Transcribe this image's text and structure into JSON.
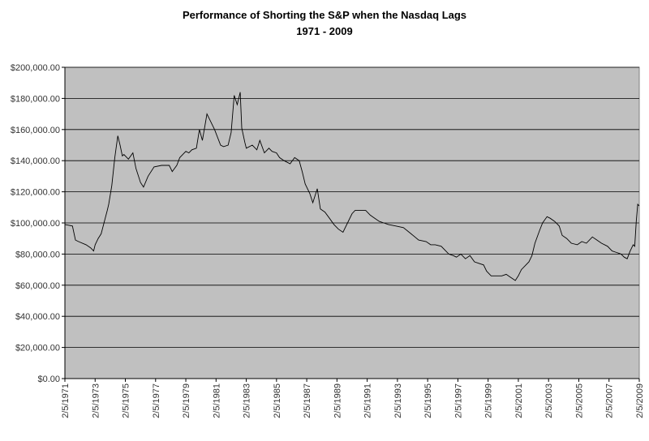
{
  "chart_data": {
    "type": "line",
    "title": "Performance of Shorting the S&P when the Nasdaq Lags",
    "subtitle": "1971 - 2009",
    "xlabel": "",
    "ylabel": "",
    "ylim": [
      0,
      200000
    ],
    "xlim": [
      1971.1,
      2009.1
    ],
    "grid": true,
    "legend": "none",
    "plot_background": "#c0c0c0",
    "line_color": "#000000",
    "y_ticks": [
      "$0.00",
      "$20,000.00",
      "$40,000.00",
      "$60,000.00",
      "$80,000.00",
      "$100,000.00",
      "$120,000.00",
      "$140,000.00",
      "$160,000.00",
      "$180,000.00",
      "$200,000.00"
    ],
    "x_ticks": [
      "2/5/1971",
      "2/5/1973",
      "2/5/1975",
      "2/5/1977",
      "2/5/1979",
      "2/5/1981",
      "2/5/1983",
      "2/5/1985",
      "2/5/1987",
      "2/5/1989",
      "2/5/1991",
      "2/5/1993",
      "2/5/1995",
      "2/5/1997",
      "2/5/1999",
      "2/5/2001",
      "2/5/2003",
      "2/5/2005",
      "2/5/2007",
      "2/5/2009"
    ],
    "series": [
      {
        "x": [
          1971.1,
          1971.6,
          1971.8,
          1972.0,
          1972.5,
          1972.8,
          1973.0,
          1973.1,
          1973.3,
          1973.5,
          1973.9,
          1974.0,
          1974.2,
          1974.4,
          1974.6,
          1974.75,
          1974.9,
          1975.0,
          1975.3,
          1975.6,
          1975.8,
          1976.1,
          1976.3,
          1976.6,
          1977.0,
          1977.5,
          1978.0,
          1978.2,
          1978.5,
          1978.7,
          1979.0,
          1979.1,
          1979.3,
          1979.5,
          1979.8,
          1980.0,
          1980.2,
          1980.5,
          1980.7,
          1981.0,
          1981.4,
          1981.6,
          1981.9,
          1982.1,
          1982.3,
          1982.5,
          1982.7,
          1982.8,
          1983.0,
          1983.1,
          1983.5,
          1983.8,
          1984.0,
          1984.3,
          1984.6,
          1984.8,
          1985.1,
          1985.3,
          1985.6,
          1986.0,
          1986.3,
          1986.6,
          1986.8,
          1987.0,
          1987.3,
          1987.5,
          1987.8,
          1988.0,
          1988.3,
          1988.6,
          1988.9,
          1989.2,
          1989.5,
          1989.8,
          1990.1,
          1990.3,
          1990.6,
          1991.0,
          1991.3,
          1991.6,
          1991.9,
          1992.2,
          1992.5,
          1993.0,
          1993.5,
          1994.0,
          1994.5,
          1995.0,
          1995.3,
          1995.6,
          1996.0,
          1996.3,
          1996.5,
          1996.8,
          1997.0,
          1997.3,
          1997.6,
          1997.9,
          1998.2,
          1998.5,
          1998.8,
          1999.0,
          1999.3,
          1999.6,
          2000.0,
          2000.3,
          2000.6,
          2000.9,
          2001.1,
          2001.3,
          2001.6,
          2001.8,
          2002.0,
          2002.2,
          2002.5,
          2002.7,
          2003.0,
          2003.2,
          2003.5,
          2003.8,
          2004.0,
          2004.3,
          2004.6,
          2005.0,
          2005.3,
          2005.6,
          2006.0,
          2006.3,
          2006.6,
          2007.0,
          2007.3,
          2007.6,
          2007.9,
          2008.1,
          2008.3,
          2008.5,
          2008.7,
          2008.8,
          2008.9,
          2009.0,
          2009.1
        ],
        "y": [
          99000,
          98000,
          89000,
          88000,
          86000,
          84000,
          82000,
          86000,
          90000,
          93000,
          108000,
          112000,
          124000,
          142000,
          156000,
          150000,
          143000,
          144000,
          141000,
          145000,
          135000,
          126000,
          123000,
          130000,
          136000,
          137000,
          137000,
          133000,
          137000,
          142000,
          145000,
          146000,
          145000,
          147000,
          148000,
          160000,
          153000,
          170000,
          166000,
          160000,
          150000,
          149000,
          150000,
          158000,
          182000,
          176000,
          184000,
          161000,
          152000,
          148000,
          150000,
          147000,
          153000,
          145000,
          148000,
          146000,
          145000,
          142000,
          140000,
          138000,
          142000,
          140000,
          133000,
          125000,
          119000,
          113000,
          122000,
          109000,
          107000,
          103000,
          99000,
          96000,
          94000,
          100000,
          106000,
          108000,
          108000,
          108000,
          105000,
          103000,
          101000,
          100000,
          99000,
          98000,
          97000,
          93000,
          89000,
          88000,
          86000,
          86000,
          85000,
          82000,
          80000,
          79000,
          78000,
          80000,
          77000,
          79000,
          75000,
          74000,
          73000,
          69000,
          66000,
          66000,
          66000,
          67000,
          65000,
          63000,
          66000,
          70000,
          73000,
          75000,
          79000,
          87000,
          95000,
          100000,
          104000,
          103000,
          101000,
          98000,
          92000,
          90000,
          87000,
          86000,
          88000,
          87000,
          91000,
          89000,
          87000,
          85000,
          82000,
          81000,
          80000,
          78000,
          77000,
          82000,
          86000,
          85000,
          101000,
          112000,
          111000
        ]
      }
    ]
  }
}
